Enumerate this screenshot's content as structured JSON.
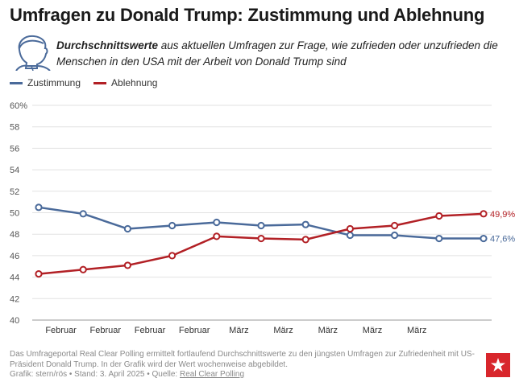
{
  "header": {
    "title": "Umfragen zu Donald Trump: Zustimmung und Ablehnung",
    "subtitle_bold": "Durchschnittswerte",
    "subtitle_rest": " aus aktuellen Umfragen zur Frage, wie zufrieden oder unzufrieden die Menschen in den USA mit der Arbeit von Donald Trump sind",
    "icon": "trump-portrait-icon"
  },
  "chart_data": {
    "type": "line",
    "categories": [
      "",
      "Februar",
      "Februar",
      "Februar",
      "Februar",
      "März",
      "März",
      "März",
      "März",
      "März",
      ""
    ],
    "y_ticks": [
      "40",
      "42",
      "44",
      "46",
      "48",
      "50",
      "52",
      "54",
      "56",
      "58",
      "60%"
    ],
    "ylim": [
      40,
      60
    ],
    "grid": true,
    "legend_position": "top-left",
    "series": [
      {
        "name": "Zustimmung",
        "color": "#4a6a9a",
        "values": [
          50.5,
          49.9,
          48.5,
          48.8,
          49.1,
          48.8,
          48.9,
          47.9,
          47.9,
          47.6,
          47.6
        ],
        "end_label": "47,6%"
      },
      {
        "name": "Ablehnung",
        "color": "#b22025",
        "values": [
          44.3,
          44.7,
          45.1,
          46.0,
          47.8,
          47.6,
          47.5,
          48.5,
          48.8,
          49.7,
          49.9
        ],
        "end_label": "49,9%"
      }
    ]
  },
  "footer": {
    "note": "Das Umfrageportal Real Clear Polling ermittelt fortlaufend Durchschnittswerte zu den jüngsten Umfragen zur Zufriedenheit mit US-Präsident Donald Trump. In der Grafik wird der Wert wochenweise abgebildet.",
    "credit_prefix": "Grafik: stern/rös • Stand: 3. April 2025 • Quelle: ",
    "source_link": "Real Clear Polling"
  },
  "logo": {
    "icon": "stern-logo-icon",
    "color": "#d8262c"
  }
}
